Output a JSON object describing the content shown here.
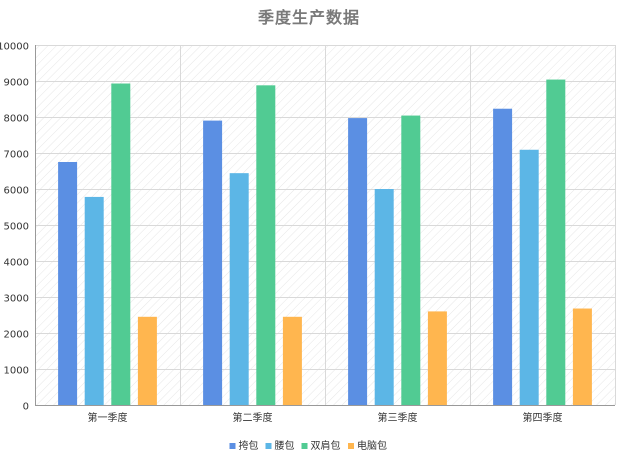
{
  "chart_data": {
    "type": "bar",
    "title": "季度生产数据",
    "xlabel": "",
    "ylabel": "",
    "categories": [
      "第一季度",
      "第二季度",
      "第三季度",
      "第四季度"
    ],
    "ylim": [
      0,
      10000
    ],
    "yticks": [
      0,
      1000,
      2000,
      3000,
      4000,
      5000,
      6000,
      7000,
      8000,
      9000,
      10000
    ],
    "grid": true,
    "legend_position": "bottom",
    "series": [
      {
        "name": "挎包",
        "color": "#5b8fe3",
        "values": [
          6750,
          7900,
          7970,
          8230
        ]
      },
      {
        "name": "腰包",
        "color": "#5cb6e6",
        "values": [
          5780,
          6440,
          6000,
          7090
        ]
      },
      {
        "name": "双肩包",
        "color": "#51cb93",
        "values": [
          8930,
          8880,
          8040,
          9040
        ]
      },
      {
        "name": "电脑包",
        "color": "#ffb64f",
        "values": [
          2450,
          2450,
          2600,
          2680
        ]
      }
    ]
  }
}
